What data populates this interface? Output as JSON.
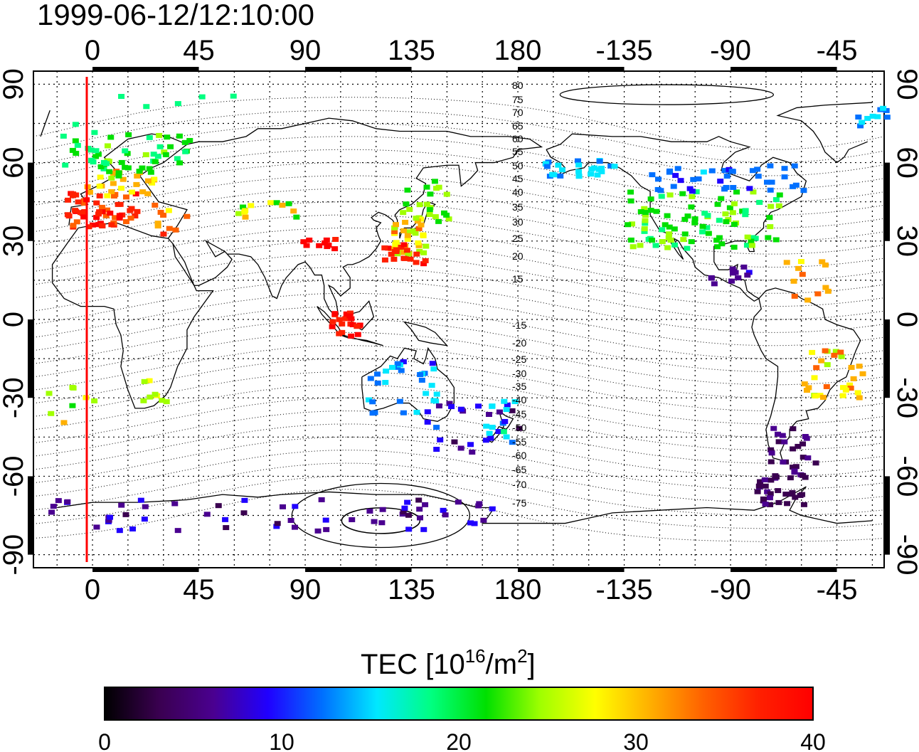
{
  "title": "1999-06-12/12:10:00",
  "axes": {
    "top_labels": [
      "0",
      "45",
      "90",
      "135",
      "180",
      "-135",
      "-90",
      "-45"
    ],
    "bottom_labels": [
      "0",
      "45",
      "90",
      "135",
      "180",
      "-135",
      "-90",
      "-45"
    ],
    "left_labels": [
      "90",
      "60",
      "30",
      "0",
      "-30",
      "-60",
      "-90"
    ],
    "right_labels": [
      "90",
      "60",
      "30",
      "0",
      "-30",
      "-60",
      "-90"
    ]
  },
  "map": {
    "lon_range": [
      -25,
      335
    ],
    "lat_range": [
      -95,
      95
    ],
    "grid": true,
    "terminator_color": "#ff0000",
    "terminator_label": "day/night line near 0 longitude",
    "contour_labels": [
      "80",
      "75",
      "70",
      "65",
      "60",
      "55",
      "50",
      "45",
      "40",
      "35",
      "30",
      "25",
      "20",
      "15",
      "-15",
      "-20",
      "-25",
      "-30",
      "-35",
      "-40",
      "-45",
      "-50",
      "-55",
      "-60",
      "-65",
      "-70",
      "-75"
    ]
  },
  "colorbar": {
    "title_prefix": "TEC  [10",
    "title_exp1": "16",
    "title_mid": "/m",
    "title_exp2": "2",
    "title_suffix": "]",
    "min": 0,
    "max": 40,
    "tick_labels": [
      "0",
      "10",
      "20",
      "30",
      "40"
    ],
    "colors": [
      "#000000",
      "#3a0050",
      "#4a0090",
      "#2000ff",
      "#0070ff",
      "#00e8ff",
      "#00ff80",
      "#00e000",
      "#a0ff00",
      "#ffff00",
      "#ffb000",
      "#ff6000",
      "#ff2000",
      "#ff0000"
    ]
  }
}
